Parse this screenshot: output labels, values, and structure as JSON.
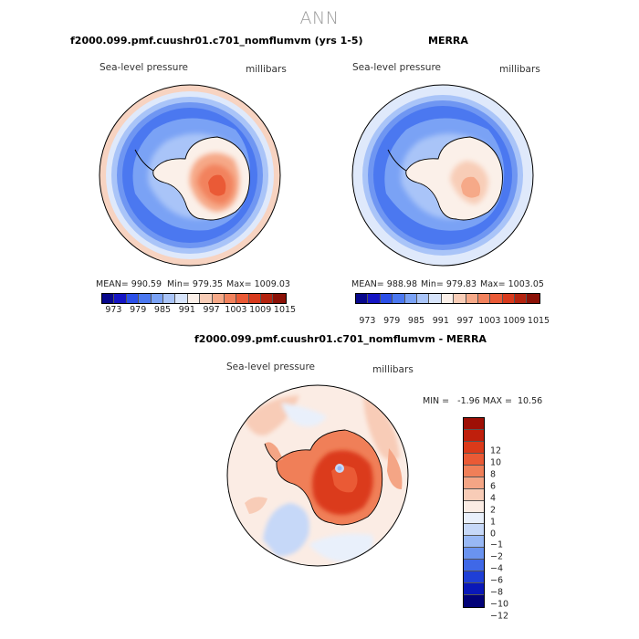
{
  "suptitle": "ANN",
  "chart_data": [
    {
      "type": "heatmap",
      "projection": "south-polar-stereographic",
      "title": "f2000.099.pmf.cuushr01.c701_nomflumvm (yrs 1-5)",
      "variable_label": "Sea-level pressure",
      "units_label": "millibars",
      "stats": {
        "mean": "990.59",
        "min": "979.35",
        "max": "1009.03"
      },
      "stats_text": {
        "mean": "MEAN= 990.59",
        "min": "Min= 979.35",
        "max": "Max= 1009.03"
      },
      "colorbar_ticks": [
        "973",
        "979",
        "985",
        "991",
        "997",
        "1003",
        "1009",
        "1015"
      ]
    },
    {
      "type": "heatmap",
      "projection": "south-polar-stereographic",
      "title": "MERRA",
      "variable_label": "Sea-level pressure",
      "units_label": "millibars",
      "stats": {
        "mean": "988.98",
        "min": "979.83",
        "max": "1003.05"
      },
      "stats_text": {
        "mean": "MEAN= 988.98",
        "min": "Min= 979.83",
        "max": "Max= 1003.05"
      },
      "colorbar_ticks": [
        "973",
        "979",
        "985",
        "991",
        "997",
        "1003",
        "1009",
        "1015"
      ]
    },
    {
      "type": "heatmap",
      "projection": "south-polar-stereographic",
      "title": "f2000.099.pmf.cuushr01.c701_nomflumvm - MERRA",
      "variable_label": "Sea-level pressure",
      "units_label": "millibars",
      "stats": {
        "min": "-1.96",
        "max": "10.56"
      },
      "minmax_text": "MIN =   -1.96 MAX =  10.56",
      "colorbar_ticks": [
        "12",
        "10",
        "8",
        "6",
        "4",
        "2",
        "1",
        "0",
        "−1",
        "−2",
        "−4",
        "−6",
        "−8",
        "−10",
        "−12"
      ]
    }
  ],
  "palettes": {
    "abs": [
      "#08088c",
      "#1515c4",
      "#2b4fe8",
      "#4b78f0",
      "#7aa2f5",
      "#a9c4f8",
      "#d7e4fb",
      "#fbf0e9",
      "#f8cdb7",
      "#f6a988",
      "#f2825d",
      "#ea5a36",
      "#d83a1d",
      "#b4230f",
      "#8b1107"
    ],
    "diff": [
      "#9e0f05",
      "#bf1f0c",
      "#db3a1a",
      "#ea5a35",
      "#f07f58",
      "#f4a585",
      "#f8ccb7",
      "#fbece4",
      "#e9f0fb",
      "#c6d8f8",
      "#98b8f5",
      "#6a93f0",
      "#3f68e7",
      "#1f3fd6",
      "#0a18b8",
      "#020278"
    ]
  }
}
